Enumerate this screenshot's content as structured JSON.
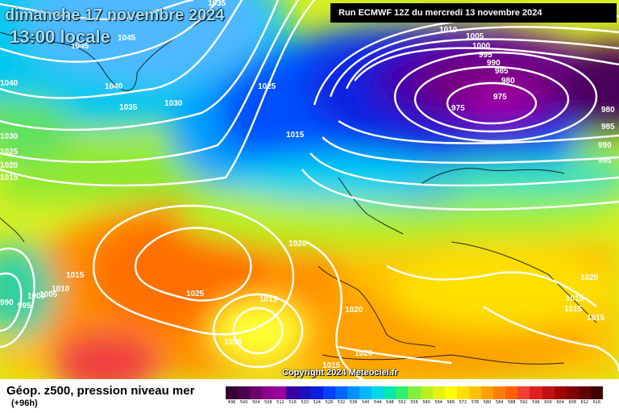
{
  "header": {
    "date": "dimanche 17 novembre 2024",
    "time": "13:00 locale",
    "run": "Run ECMWF 12Z du mercredi 13 novembre 2024"
  },
  "copyright": "Copyright 2024 Meteociel.fr",
  "footer": {
    "title": "Géop. z500, pression niveau mer",
    "lead": "(+96h)"
  },
  "legend": {
    "labels": [
      "496",
      "500",
      "504",
      "508",
      "512",
      "516",
      "520",
      "524",
      "528",
      "532",
      "536",
      "540",
      "544",
      "548",
      "552",
      "556",
      "560",
      "564",
      "568",
      "572",
      "576",
      "580",
      "584",
      "588",
      "592",
      "596",
      "600",
      "604",
      "608",
      "612",
      "616"
    ],
    "colors": [
      "#350035",
      "#4a004a",
      "#6a006a",
      "#8a008a",
      "#9c009c",
      "#3a00a0",
      "#1a10c0",
      "#0a20e0",
      "#0040ff",
      "#0066ff",
      "#0090ff",
      "#00b8ff",
      "#00d8e8",
      "#00e8b0",
      "#30f070",
      "#80f040",
      "#b8f020",
      "#e8f010",
      "#ffff00",
      "#ffe000",
      "#ffc000",
      "#ffa000",
      "#ff8000",
      "#ff6000",
      "#f04030",
      "#e02020",
      "#c01010",
      "#a00000",
      "#800000",
      "#600000",
      "#400000"
    ]
  },
  "isobar_labels": [
    {
      "text": "1035"
    },
    {
      "text": "1045"
    },
    {
      "text": "1045"
    },
    {
      "text": "1040"
    },
    {
      "text": "1040"
    },
    {
      "text": "1035"
    },
    {
      "text": "1030"
    },
    {
      "text": "1030"
    },
    {
      "text": "1025"
    },
    {
      "text": "1020"
    },
    {
      "text": "1015"
    },
    {
      "text": "1025"
    },
    {
      "text": "1015"
    },
    {
      "text": "1010"
    },
    {
      "text": "1005"
    },
    {
      "text": "1000"
    },
    {
      "text": "995"
    },
    {
      "text": "990"
    },
    {
      "text": "985"
    },
    {
      "text": "980"
    },
    {
      "text": "975"
    },
    {
      "text": "975"
    },
    {
      "text": "980"
    },
    {
      "text": "985"
    },
    {
      "text": "990"
    },
    {
      "text": "995"
    },
    {
      "text": "1020"
    },
    {
      "text": "1015"
    },
    {
      "text": "1025"
    },
    {
      "text": "1015"
    },
    {
      "text": "1010"
    },
    {
      "text": "1005"
    },
    {
      "text": "1000"
    },
    {
      "text": "995"
    },
    {
      "text": "990"
    },
    {
      "text": "1010"
    },
    {
      "text": "1020"
    },
    {
      "text": "1020"
    },
    {
      "text": "1015"
    },
    {
      "text": "1020"
    },
    {
      "text": "1015"
    },
    {
      "text": "1015"
    },
    {
      "text": "1015"
    }
  ]
}
